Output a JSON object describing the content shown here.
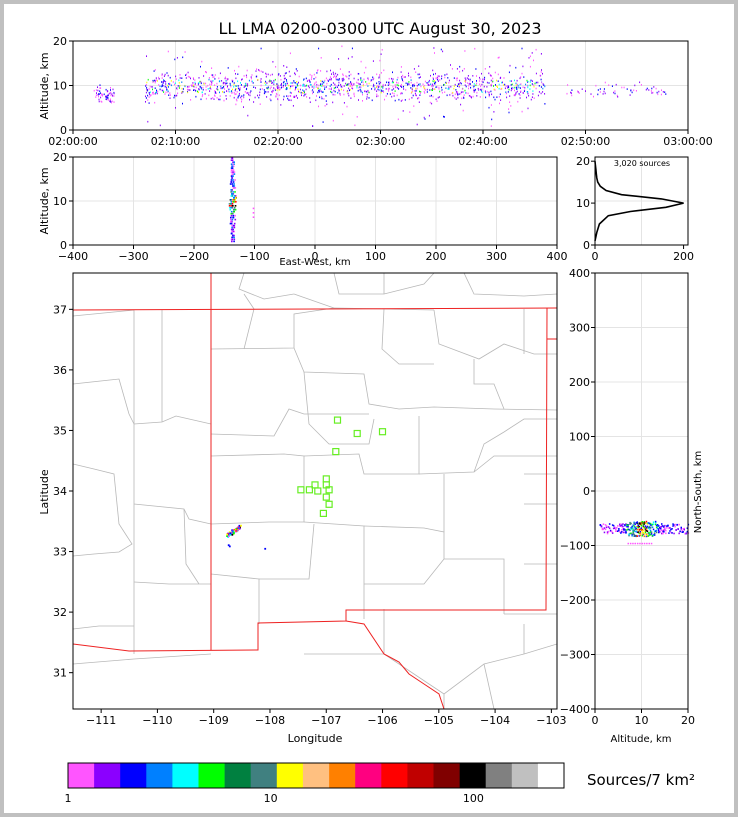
{
  "title": "LL LMA 0200-0300 UTC August 30, 2023",
  "colorbar_label": "Sources/7 km²",
  "colorbar_ticks": [
    "1",
    "10",
    "100"
  ],
  "colorbar_colors": [
    "#ff55ff",
    "#8b00ff",
    "#0000ff",
    "#0080ff",
    "#00ffff",
    "#00ff00",
    "#008040",
    "#408080",
    "#ffff00",
    "#ffc080",
    "#ff8000",
    "#ff0080",
    "#ff0000",
    "#c00000",
    "#800000",
    "#000000",
    "#808080",
    "#c0c0c0",
    "#ffffff"
  ],
  "chart_data": [
    {
      "type": "scatter",
      "name": "time-height",
      "ylabel": "Altitude, km",
      "xlim": [
        "02:00:00",
        "03:00:00"
      ],
      "ylim": [
        0,
        20
      ],
      "x_ticks": [
        "02:00:00",
        "02:10:00",
        "02:20:00",
        "02:30:00",
        "02:40:00",
        "02:50:00",
        "03:00:00"
      ],
      "y_ticks": [
        "0",
        "10",
        "20"
      ],
      "grid": true,
      "clusters": [
        {
          "t_start_min": 2.0,
          "t_end_min": 4.0,
          "alt_km": 8.0,
          "density": "low"
        },
        {
          "t_start_min": 7.0,
          "t_end_min": 46.0,
          "alt_km": 10.0,
          "density": "high"
        },
        {
          "t_start_min": 48.0,
          "t_end_min": 58.0,
          "alt_km": 9.0,
          "density": "low"
        }
      ]
    },
    {
      "type": "scatter",
      "name": "east-west-height",
      "xlabel": "East-West, km",
      "ylabel": "Altitude, km",
      "xlim": [
        -400,
        400
      ],
      "ylim": [
        0,
        20
      ],
      "x_ticks": [
        "−400",
        "−300",
        "−200",
        "−100",
        "0",
        "100",
        "200",
        "300",
        "400"
      ],
      "y_ticks": [
        "0",
        "10",
        "20"
      ],
      "grid": true,
      "column": {
        "x_km": -137,
        "alt_min_km": 1,
        "alt_max_km": 20
      }
    },
    {
      "type": "line",
      "name": "altitude-histogram",
      "annotation": "3,020 sources",
      "xlim": [
        0,
        210
      ],
      "ylim": [
        0,
        21
      ],
      "x_ticks": [
        "0",
        "200"
      ],
      "y_ticks": [
        "0",
        "10",
        "20"
      ],
      "profile": [
        [
          0,
          1
        ],
        [
          4,
          3
        ],
        [
          10,
          5
        ],
        [
          30,
          7
        ],
        [
          80,
          8
        ],
        [
          160,
          9
        ],
        [
          200,
          10
        ],
        [
          150,
          11
        ],
        [
          60,
          12
        ],
        [
          25,
          13
        ],
        [
          12,
          14
        ],
        [
          6,
          15
        ],
        [
          4,
          16
        ],
        [
          3,
          17
        ],
        [
          2,
          18
        ],
        [
          1,
          19
        ],
        [
          0,
          20
        ]
      ]
    },
    {
      "type": "scatter",
      "name": "plan-view",
      "xlabel": "Longitude",
      "ylabel": "Latitude",
      "xlim": [
        -111.5,
        -102.9
      ],
      "ylim": [
        30.4,
        37.6
      ],
      "x_ticks": [
        "−111",
        "−110",
        "−109",
        "−108",
        "−107",
        "−106",
        "−105",
        "−104",
        "−103"
      ],
      "y_ticks": [
        "31",
        "32",
        "33",
        "34",
        "35",
        "36",
        "37"
      ],
      "stations": [
        [
          -106.8,
          35.17
        ],
        [
          -106.45,
          34.95
        ],
        [
          -106.0,
          34.98
        ],
        [
          -106.83,
          34.65
        ],
        [
          -107.0,
          34.2
        ],
        [
          -107.2,
          34.1
        ],
        [
          -107.0,
          34.1
        ],
        [
          -107.3,
          34.02
        ],
        [
          -107.15,
          34.0
        ],
        [
          -106.95,
          34.02
        ],
        [
          -107.45,
          34.02
        ],
        [
          -107.0,
          33.9
        ],
        [
          -106.95,
          33.78
        ],
        [
          -107.05,
          33.63
        ]
      ],
      "sources_center": [
        -108.65,
        33.35
      ]
    },
    {
      "type": "scatter",
      "name": "north-south-height",
      "xlabel": "Altitude, km",
      "ylabel": "North-South, km",
      "xlim": [
        0,
        20
      ],
      "ylim": [
        -400,
        400
      ],
      "x_ticks": [
        "0",
        "10",
        "20"
      ],
      "y_ticks": [
        "400",
        "300",
        "200",
        "100",
        "0",
        "−100",
        "−200",
        "−300",
        "−400"
      ],
      "grid": true,
      "band": {
        "ns_km": -68,
        "alt_min_km": 1,
        "alt_max_km": 20
      }
    }
  ]
}
